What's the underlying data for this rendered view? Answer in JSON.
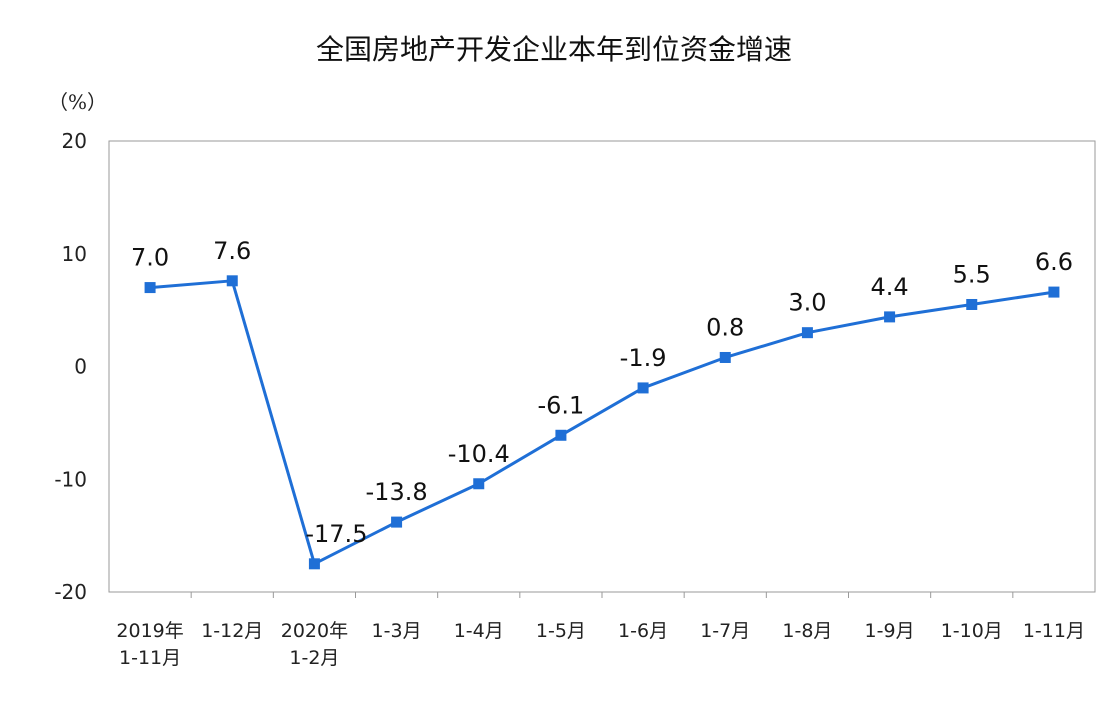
{
  "chart_data": {
    "type": "line",
    "title": "全国房地产开发企业本年到位资金增速",
    "ylabel": "",
    "unit": "（%）",
    "xlabel": "",
    "ylim": [
      -20,
      20
    ],
    "yticks": [
      20,
      10,
      0,
      -10,
      -20
    ],
    "grid": false,
    "legend": "none",
    "line_color": "#1f6fd6",
    "categories": [
      [
        "2019年",
        "1-11月"
      ],
      [
        "1-12月"
      ],
      [
        "2020年",
        "1-2月"
      ],
      [
        "1-3月"
      ],
      [
        "1-4月"
      ],
      [
        "1-5月"
      ],
      [
        "1-6月"
      ],
      [
        "1-7月"
      ],
      [
        "1-8月"
      ],
      [
        "1-9月"
      ],
      [
        "1-10月"
      ],
      [
        "1-11月"
      ]
    ],
    "values": [
      7.0,
      7.6,
      -17.5,
      -13.8,
      -10.4,
      -6.1,
      -1.9,
      0.8,
      3.0,
      4.4,
      5.5,
      6.6
    ],
    "data_labels": [
      "7.0",
      "7.6",
      "-17.5",
      "-13.8",
      "-10.4",
      "-6.1",
      "-1.9",
      "0.8",
      "3.0",
      "4.4",
      "5.5",
      "6.6"
    ]
  }
}
